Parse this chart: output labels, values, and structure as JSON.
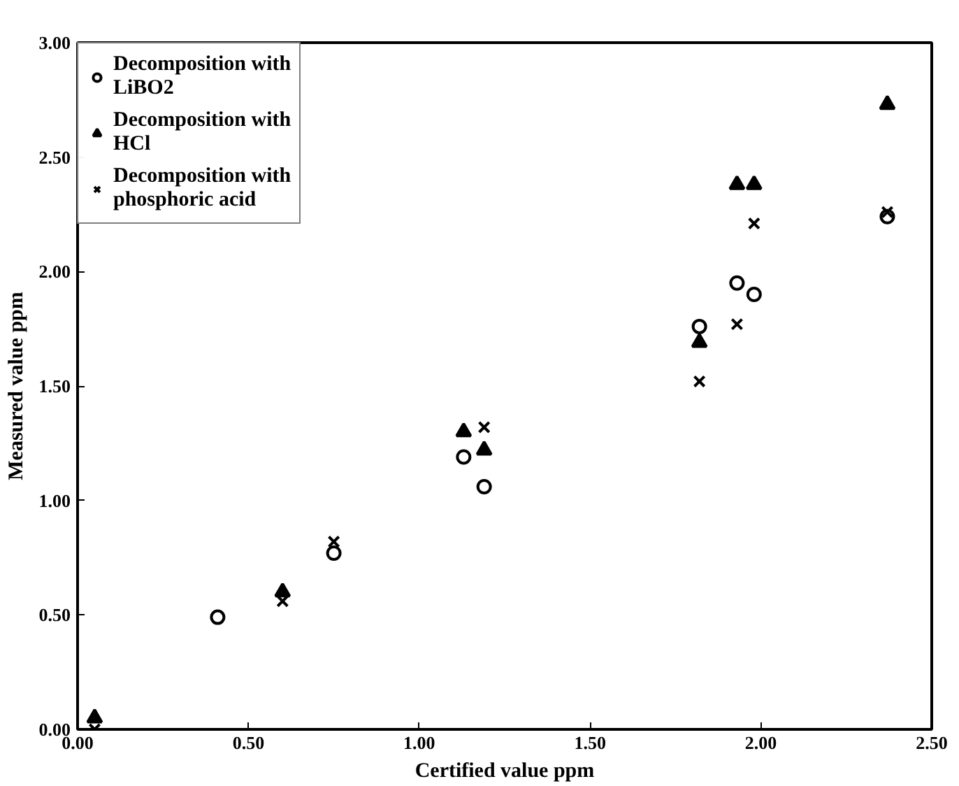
{
  "chart_data": {
    "type": "scatter",
    "xlabel": "Certified value ppm",
    "ylabel": "Measured value ppm",
    "xlim": [
      0,
      2.5
    ],
    "ylim": [
      0,
      3
    ],
    "xticks": [
      {
        "value": 0,
        "label": "0.00"
      },
      {
        "value": 0.5,
        "label": "0.50"
      },
      {
        "value": 1,
        "label": "1.00"
      },
      {
        "value": 1.5,
        "label": "1.50"
      },
      {
        "value": 2,
        "label": "2.00"
      },
      {
        "value": 2.5,
        "label": "2.50"
      }
    ],
    "yticks": [
      {
        "value": 0,
        "label": "0.00"
      },
      {
        "value": 0.5,
        "label": "0.50"
      },
      {
        "value": 1,
        "label": "1.00"
      },
      {
        "value": 1.5,
        "label": "1.50"
      },
      {
        "value": 2,
        "label": "2.00"
      },
      {
        "value": 2.5,
        "label": "2.50"
      },
      {
        "value": 3,
        "label": "3.00"
      }
    ],
    "grid": false,
    "legend": "top left",
    "series": [
      {
        "name": "Decomposition with LiBO2",
        "color": "#000000",
        "marker": "circle",
        "x": [
          0.41,
          0.75,
          1.13,
          1.19,
          1.82,
          1.93,
          1.98,
          2.37
        ],
        "values": [
          0.49,
          0.77,
          1.19,
          1.06,
          1.76,
          1.95,
          1.9,
          2.24
        ]
      },
      {
        "name": "Decomposition with HCl",
        "color": "#000000",
        "marker": "triangle",
        "x": [
          0.05,
          0.6,
          1.13,
          1.19,
          1.82,
          1.93,
          1.98,
          2.37
        ],
        "values": [
          0.05,
          0.6,
          1.3,
          1.22,
          1.69,
          2.38,
          2.38,
          2.73
        ]
      },
      {
        "name": "Decomposition with phosphoric acid",
        "color": "#000000",
        "marker": "cross",
        "x": [
          0.05,
          0.6,
          0.75,
          1.19,
          1.82,
          1.93,
          1.98,
          2.37
        ],
        "values": [
          0.0,
          0.56,
          0.82,
          1.32,
          1.52,
          1.77,
          2.21,
          2.26
        ]
      }
    ]
  }
}
